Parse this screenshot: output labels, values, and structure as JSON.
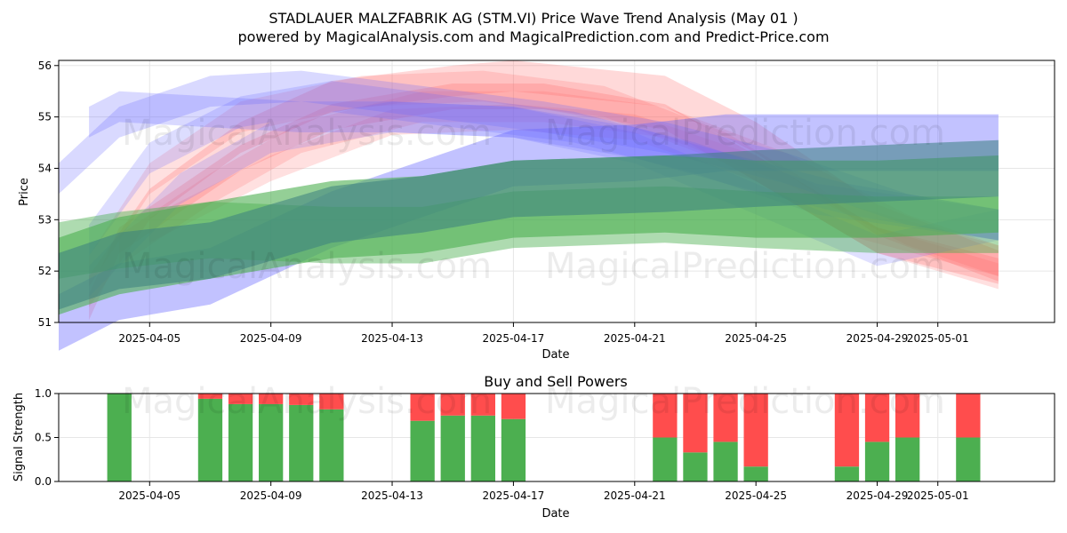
{
  "figure": {
    "title_line1": "STADLAUER MALZFABRIK AG (STM.VI) Price Wave Trend Analysis (May 01 )",
    "title_line2": "powered by MagicalAnalysis.com and MagicalPrediction.com and Predict-Price.com",
    "watermarks": [
      "MagicalAnalysis.com",
      "MagicalPrediction.com"
    ]
  },
  "chart_data": [
    {
      "type": "area",
      "title": "",
      "xlabel": "Date",
      "ylabel": "Price",
      "ylim": [
        51,
        56.1
      ],
      "xlim": [
        "2025-04-02",
        "2025-05-04"
      ],
      "yticks": [
        51,
        52,
        53,
        54,
        55,
        56
      ],
      "xticks": [
        "2025-04-05",
        "2025-04-09",
        "2025-04-13",
        "2025-04-17",
        "2025-04-21",
        "2025-04-25",
        "2025-04-29",
        "2025-05-01"
      ],
      "grid": true,
      "colors": {
        "red": "#ff6666",
        "blue": "#6666ff",
        "green": "#4caf50",
        "teal": "#3a7f7f"
      },
      "bands": [
        {
          "color": "red",
          "alpha": 0.25,
          "width": 0.25,
          "x": [
            "2025-04-03",
            "2025-04-04",
            "2025-04-06",
            "2025-04-08",
            "2025-04-11",
            "2025-04-15",
            "2025-04-18",
            "2025-04-22",
            "2025-04-25",
            "2025-04-29",
            "2025-05-03"
          ],
          "y": [
            51.3,
            52.6,
            53.4,
            54.2,
            55.0,
            55.4,
            55.4,
            55.0,
            54.0,
            52.6,
            52.0
          ]
        },
        {
          "color": "red",
          "alpha": 0.25,
          "width": 0.3,
          "x": [
            "2025-04-03",
            "2025-04-05",
            "2025-04-08",
            "2025-04-11",
            "2025-04-15",
            "2025-04-17",
            "2025-04-22",
            "2025-04-25",
            "2025-04-29",
            "2025-05-03"
          ],
          "y": [
            51.6,
            53.3,
            54.6,
            55.4,
            55.7,
            55.8,
            55.5,
            54.6,
            53.0,
            52.1
          ]
        },
        {
          "color": "red",
          "alpha": 0.2,
          "width": 0.3,
          "x": [
            "2025-04-03",
            "2025-04-05",
            "2025-04-08",
            "2025-04-12",
            "2025-04-16",
            "2025-04-20",
            "2025-04-24",
            "2025-04-28",
            "2025-05-03"
          ],
          "y": [
            52.0,
            53.8,
            55.0,
            55.5,
            55.6,
            55.3,
            54.4,
            53.0,
            52.2
          ]
        },
        {
          "color": "red",
          "alpha": 0.2,
          "width": 0.3,
          "x": [
            "2025-04-04",
            "2025-04-07",
            "2025-04-10",
            "2025-04-14",
            "2025-04-18",
            "2025-04-22",
            "2025-04-26",
            "2025-04-30",
            "2025-05-03"
          ],
          "y": [
            52.4,
            53.6,
            54.6,
            55.2,
            55.2,
            54.9,
            54.0,
            52.8,
            52.2
          ]
        },
        {
          "color": "red",
          "alpha": 0.2,
          "width": 0.25,
          "x": [
            "2025-04-05",
            "2025-04-09",
            "2025-04-13",
            "2025-04-17",
            "2025-04-21",
            "2025-04-25",
            "2025-04-29",
            "2025-05-03"
          ],
          "y": [
            52.8,
            54.0,
            54.9,
            55.0,
            54.8,
            54.0,
            52.6,
            51.9
          ]
        },
        {
          "color": "blue",
          "alpha": 0.25,
          "width": 0.3,
          "x": [
            "2025-04-03",
            "2025-04-04",
            "2025-04-07",
            "2025-04-10",
            "2025-04-13",
            "2025-04-17",
            "2025-04-21",
            "2025-04-24",
            "2025-04-28",
            "2025-05-03"
          ],
          "y": [
            54.9,
            55.2,
            55.1,
            55.0,
            55.0,
            54.9,
            54.5,
            54.0,
            53.4,
            52.9
          ]
        },
        {
          "color": "blue",
          "alpha": 0.25,
          "width": 0.3,
          "x": [
            "2025-04-02",
            "2025-04-04",
            "2025-04-07",
            "2025-04-10",
            "2025-04-14",
            "2025-04-18",
            "2025-04-22",
            "2025-04-26",
            "2025-04-30",
            "2025-05-03"
          ],
          "y": [
            53.8,
            54.9,
            55.5,
            55.6,
            55.3,
            55.0,
            54.6,
            54.0,
            53.2,
            52.9
          ]
        },
        {
          "color": "blue",
          "alpha": 0.22,
          "width": 0.3,
          "x": [
            "2025-04-03",
            "2025-04-05",
            "2025-04-08",
            "2025-04-11",
            "2025-04-15",
            "2025-04-19",
            "2025-04-23",
            "2025-04-27",
            "2025-05-03"
          ],
          "y": [
            52.6,
            54.2,
            55.1,
            55.4,
            55.1,
            54.8,
            54.2,
            53.4,
            52.9
          ]
        },
        {
          "color": "blue",
          "alpha": 0.2,
          "width": 0.3,
          "x": [
            "2025-04-03",
            "2025-04-06",
            "2025-04-09",
            "2025-04-13",
            "2025-04-17",
            "2025-04-21",
            "2025-04-25",
            "2025-04-29",
            "2025-05-03"
          ],
          "y": [
            51.8,
            53.6,
            54.6,
            55.0,
            54.9,
            54.4,
            53.4,
            52.4,
            52.9
          ]
        },
        {
          "color": "blue",
          "alpha": 0.4,
          "width": 0.55,
          "x": [
            "2025-04-02",
            "2025-04-04",
            "2025-04-07",
            "2025-04-11",
            "2025-04-14",
            "2025-04-17",
            "2025-04-21",
            "2025-04-24",
            "2025-04-28",
            "2025-05-03"
          ],
          "y": [
            51.0,
            51.6,
            51.9,
            53.0,
            53.6,
            54.2,
            54.3,
            54.5,
            54.5,
            54.5
          ]
        },
        {
          "color": "green",
          "alpha": 0.6,
          "width": 0.75,
          "x": [
            "2025-04-02",
            "2025-04-04",
            "2025-04-07",
            "2025-04-11",
            "2025-04-14",
            "2025-04-17",
            "2025-04-22",
            "2025-04-25",
            "2025-04-29",
            "2025-05-03"
          ],
          "y": [
            51.9,
            52.3,
            52.6,
            53.0,
            53.1,
            53.4,
            53.5,
            53.4,
            53.4,
            53.5
          ]
        },
        {
          "color": "green",
          "alpha": 0.45,
          "width": 0.55,
          "x": [
            "2025-04-02",
            "2025-04-04",
            "2025-04-07",
            "2025-04-11",
            "2025-04-14",
            "2025-04-17",
            "2025-04-22",
            "2025-04-25",
            "2025-04-29",
            "2025-05-03"
          ],
          "y": [
            52.4,
            52.6,
            52.8,
            52.7,
            52.7,
            53.0,
            53.1,
            53.0,
            52.9,
            52.9
          ]
        },
        {
          "color": "teal",
          "alpha": 0.55,
          "width": 0.55,
          "x": [
            "2025-04-02",
            "2025-04-04",
            "2025-04-07",
            "2025-04-11",
            "2025-04-14",
            "2025-04-17",
            "2025-04-22",
            "2025-04-25",
            "2025-04-29",
            "2025-05-03"
          ],
          "y": [
            51.8,
            52.2,
            52.4,
            53.1,
            53.3,
            53.6,
            53.7,
            53.8,
            53.9,
            54.0
          ]
        }
      ]
    },
    {
      "type": "bar",
      "title": "Buy and Sell Powers",
      "xlabel": "Date",
      "ylabel": "Signal Strength",
      "ylim": [
        0,
        1.0
      ],
      "yticks": [
        0.0,
        0.5,
        1.0
      ],
      "xticks": [
        "2025-04-05",
        "2025-04-09",
        "2025-04-13",
        "2025-04-17",
        "2025-04-21",
        "2025-04-25",
        "2025-04-29",
        "2025-05-01"
      ],
      "grid": true,
      "series": [
        {
          "name": "Buy",
          "color": "#4caf50"
        },
        {
          "name": "Sell",
          "color": "#ff4d4d"
        }
      ],
      "dates": [
        "2025-04-04",
        "2025-04-07",
        "2025-04-08",
        "2025-04-09",
        "2025-04-10",
        "2025-04-11",
        "2025-04-14",
        "2025-04-15",
        "2025-04-16",
        "2025-04-17",
        "2025-04-22",
        "2025-04-23",
        "2025-04-24",
        "2025-04-25",
        "2025-04-28",
        "2025-04-29",
        "2025-04-30",
        "2025-05-02"
      ],
      "buy": [
        1.0,
        0.94,
        0.88,
        0.88,
        0.87,
        0.82,
        0.69,
        0.75,
        0.75,
        0.71,
        0.5,
        0.33,
        0.45,
        0.17,
        0.17,
        0.45,
        0.5,
        0.5
      ],
      "sell": [
        0.0,
        0.06,
        0.12,
        0.12,
        0.13,
        0.18,
        0.31,
        0.25,
        0.25,
        0.29,
        0.5,
        0.67,
        0.55,
        0.83,
        0.83,
        0.55,
        0.5,
        0.5
      ]
    }
  ]
}
